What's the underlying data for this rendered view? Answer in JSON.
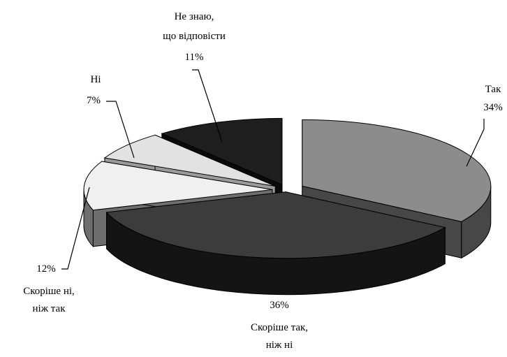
{
  "chart_data": {
    "type": "pie",
    "title": "",
    "style": "3d-exploded",
    "slices": [
      {
        "label_lines": [
          "Так"
        ],
        "value_text": "34%",
        "value": 34,
        "top_color": "#8c8c8c",
        "side_color": "#474747"
      },
      {
        "label_lines": [
          "Скоріше так,",
          "ніж ні"
        ],
        "value_text": "36%",
        "value": 36,
        "top_color": "#3c3c3c",
        "side_color": "#141414"
      },
      {
        "label_lines": [
          "Скоріше ні,",
          "ніж так"
        ],
        "value_text": "12%",
        "value": 12,
        "top_color": "#f0f0f0",
        "side_color": "#6e6e6e"
      },
      {
        "label_lines": [
          "Ні"
        ],
        "value_text": "7%",
        "value": 7,
        "top_color": "#e2e2e2",
        "side_color": "#9a9a9a"
      },
      {
        "label_lines": [
          "Не знаю,",
          "що відповісти"
        ],
        "value_text": "11%",
        "value": 11,
        "top_color": "#1e1e1e",
        "side_color": "#0a0a0a"
      }
    ]
  }
}
